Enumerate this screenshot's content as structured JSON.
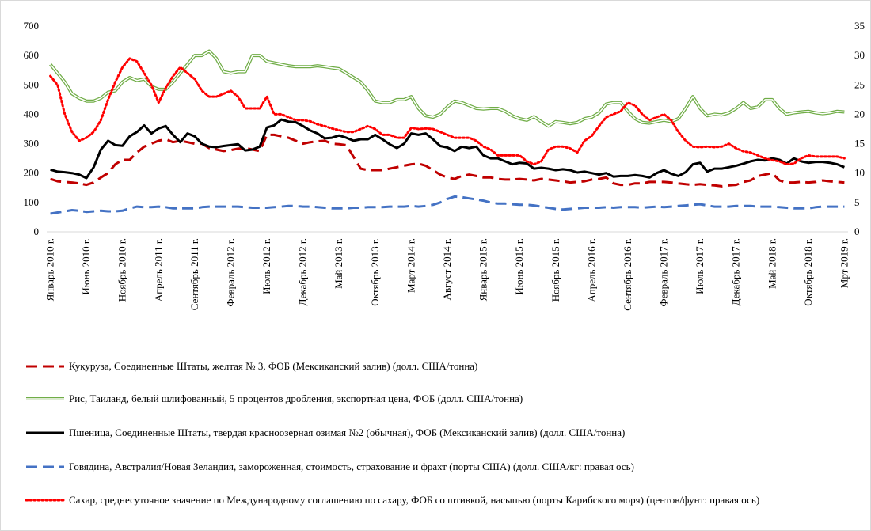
{
  "chart_data": {
    "type": "line",
    "categories": [
      "Январь 2010 г.",
      null,
      null,
      null,
      null,
      "Июнь 2010 г.",
      null,
      null,
      null,
      null,
      "Ноябрь 2010 г.",
      null,
      null,
      null,
      null,
      "Апрель 2011 г.",
      null,
      null,
      null,
      null,
      "Сентябрь 2011 г.",
      null,
      null,
      null,
      null,
      "Февраль 2012 г.",
      null,
      null,
      null,
      null,
      "Июль 2012 г.",
      null,
      null,
      null,
      null,
      "Декабрь 2012 г.",
      null,
      null,
      null,
      null,
      "Май 2013 г.",
      null,
      null,
      null,
      null,
      "Октябрь 2013 г.",
      null,
      null,
      null,
      null,
      "Март 2014 г.",
      null,
      null,
      null,
      null,
      "Август 2014 г.",
      null,
      null,
      null,
      null,
      "Январь 2015 г.",
      null,
      null,
      null,
      null,
      "Июнь 2015 г.",
      null,
      null,
      null,
      null,
      "Ноябрь 2015 г.",
      null,
      null,
      null,
      null,
      "Апрель 2016 г.",
      null,
      null,
      null,
      null,
      "Сентябрь 2016 г.",
      null,
      null,
      null,
      null,
      "Февраль 2017 г.",
      null,
      null,
      null,
      null,
      "Июль 2017 г.",
      null,
      null,
      null,
      null,
      "Декабрь 2017 г.",
      null,
      null,
      null,
      null,
      "Май 2018 г.",
      null,
      null,
      null,
      null,
      "Октябрь 2018 г.",
      null,
      null,
      null,
      null,
      "Мрт 2019 г."
    ],
    "ylim": [
      0,
      700
    ],
    "yticks": [
      0,
      100,
      200,
      300,
      400,
      500,
      600,
      700
    ],
    "y2lim": [
      0,
      35
    ],
    "y2ticks": [
      0,
      5,
      10,
      15,
      20,
      25,
      30,
      35
    ],
    "series": [
      {
        "name": "Кукуруза, Соединенные Штаты, желтая № 3, ФОБ (Мексиканский залив) (долл. США/тонна)",
        "color": "#c00000",
        "style": "dashed",
        "values": [
          180,
          172,
          170,
          168,
          165,
          160,
          168,
          185,
          200,
          230,
          245,
          245,
          270,
          290,
          300,
          310,
          315,
          305,
          310,
          305,
          300,
          300,
          285,
          280,
          275,
          278,
          283,
          285,
          280,
          275,
          330,
          330,
          325,
          320,
          310,
          300,
          305,
          308,
          310,
          300,
          298,
          295,
          255,
          215,
          210,
          210,
          210,
          215,
          220,
          225,
          230,
          232,
          225,
          210,
          195,
          185,
          180,
          190,
          195,
          190,
          185,
          185,
          180,
          178,
          178,
          180,
          178,
          175,
          180,
          178,
          175,
          172,
          168,
          170,
          172,
          178,
          180,
          185,
          165,
          160,
          160,
          165,
          165,
          170,
          170,
          170,
          168,
          165,
          162,
          160,
          162,
          160,
          158,
          155,
          158,
          160,
          170,
          175,
          190,
          195,
          200,
          175,
          168,
          168,
          170,
          168,
          170,
          175,
          172,
          170,
          168
        ]
      },
      {
        "name": "Рис, Таиланд, белый шлифованный, 5 процентов дробления, экспортная цена, ФОБ (долл. США/тонна)",
        "color": "#70ad47",
        "style": "double",
        "values": [
          570,
          540,
          510,
          470,
          455,
          445,
          445,
          455,
          475,
          480,
          510,
          525,
          515,
          520,
          495,
          485,
          485,
          510,
          540,
          570,
          600,
          600,
          615,
          590,
          545,
          540,
          545,
          545,
          600,
          600,
          580,
          575,
          570,
          565,
          562,
          562,
          562,
          565,
          562,
          558,
          555,
          540,
          525,
          510,
          480,
          445,
          440,
          440,
          450,
          450,
          460,
          420,
          395,
          390,
          400,
          425,
          445,
          440,
          430,
          420,
          418,
          420,
          420,
          410,
          395,
          385,
          380,
          392,
          375,
          360,
          375,
          372,
          368,
          372,
          385,
          390,
          405,
          435,
          440,
          440,
          410,
          385,
          372,
          370,
          375,
          380,
          375,
          385,
          420,
          460,
          420,
          395,
          400,
          398,
          405,
          420,
          440,
          420,
          425,
          450,
          450,
          420,
          400,
          405,
          408,
          410,
          405,
          402,
          405,
          410,
          408
        ]
      },
      {
        "name": "Пшеница, Соединенные Штаты, твердая красноозерная озимая №2 (обычная), ФОБ (Мексиканский залив) (долл. США/тонна)",
        "color": "#000000",
        "style": "solid",
        "values": [
          212,
          205,
          203,
          200,
          195,
          183,
          220,
          280,
          310,
          295,
          293,
          325,
          340,
          362,
          335,
          352,
          360,
          330,
          305,
          335,
          325,
          300,
          290,
          288,
          292,
          295,
          298,
          277,
          280,
          290,
          355,
          362,
          382,
          375,
          373,
          360,
          345,
          335,
          318,
          320,
          328,
          320,
          310,
          315,
          315,
          330,
          315,
          298,
          285,
          300,
          335,
          330,
          335,
          315,
          292,
          287,
          275,
          290,
          285,
          290,
          260,
          250,
          250,
          240,
          230,
          235,
          233,
          215,
          218,
          215,
          210,
          213,
          210,
          202,
          205,
          200,
          195,
          200,
          188,
          190,
          190,
          193,
          190,
          185,
          200,
          210,
          198,
          190,
          203,
          230,
          235,
          205,
          215,
          215,
          220,
          225,
          232,
          240,
          245,
          243,
          250,
          245,
          232,
          250,
          240,
          235,
          238,
          238,
          235,
          230,
          220
        ]
      },
      {
        "name": "Говядина, Австралия/Новая Зеландия, замороженная, стоимость, страхование и фрахт (порты США) (долл. США/кг: правая ось)",
        "color": "#4472c4",
        "style": "dashed",
        "axis": "y2",
        "values": [
          3.1,
          3.3,
          3.5,
          3.7,
          3.6,
          3.4,
          3.5,
          3.6,
          3.5,
          3.5,
          3.6,
          4.0,
          4.3,
          4.2,
          4.2,
          4.3,
          4.2,
          4.0,
          4.0,
          4.0,
          4.0,
          4.2,
          4.3,
          4.3,
          4.3,
          4.3,
          4.3,
          4.2,
          4.1,
          4.1,
          4.1,
          4.2,
          4.3,
          4.4,
          4.4,
          4.3,
          4.3,
          4.2,
          4.1,
          4.0,
          4.0,
          4.0,
          4.1,
          4.1,
          4.2,
          4.2,
          4.2,
          4.3,
          4.3,
          4.3,
          4.4,
          4.3,
          4.4,
          4.6,
          5.0,
          5.6,
          6.0,
          5.9,
          5.7,
          5.5,
          5.3,
          5.0,
          4.8,
          4.8,
          4.7,
          4.6,
          4.6,
          4.5,
          4.3,
          4.1,
          3.9,
          3.8,
          3.9,
          4.0,
          4.1,
          4.1,
          4.1,
          4.2,
          4.1,
          4.2,
          4.2,
          4.2,
          4.1,
          4.2,
          4.3,
          4.2,
          4.3,
          4.4,
          4.5,
          4.6,
          4.7,
          4.5,
          4.3,
          4.3,
          4.3,
          4.4,
          4.4,
          4.4,
          4.3,
          4.3,
          4.3,
          4.2,
          4.1,
          4.0,
          4.0,
          4.0,
          4.2,
          4.3,
          4.3,
          4.3,
          4.3
        ]
      },
      {
        "name": "Сахар, среднесуточное значение по Международному соглашению по сахару, ФОБ со штивкой, насыпью (порты Карибского моря) (центов/фунт: правая ось)",
        "color": "#ff0000",
        "style": "dotted",
        "axis": "y2",
        "values": [
          26.5,
          25,
          20,
          17,
          15.5,
          16,
          17,
          19,
          22.5,
          25.5,
          28,
          29.5,
          29,
          27,
          25,
          22,
          24.5,
          26.5,
          28,
          27,
          26,
          24,
          23,
          23,
          23.5,
          24,
          23,
          21,
          21,
          21,
          23,
          20,
          20,
          19.5,
          19,
          19,
          18.8,
          18.3,
          18,
          17.6,
          17.3,
          17,
          17,
          17.5,
          18,
          17.5,
          16.5,
          16.5,
          16,
          16,
          17.7,
          17.5,
          17.6,
          17.5,
          17,
          16.5,
          16,
          16,
          16,
          15.5,
          14.5,
          14,
          13,
          13,
          13,
          13,
          12,
          11.5,
          12,
          14,
          14.5,
          14.5,
          14.2,
          13.5,
          15.5,
          16.3,
          18,
          19.5,
          20,
          20.5,
          22,
          21.5,
          20,
          19,
          19.5,
          20,
          19,
          17,
          15.5,
          14.5,
          14.4,
          14.5,
          14.4,
          14.5,
          15,
          14.2,
          13.7,
          13.5,
          13,
          12.5,
          12.2,
          12,
          11.5,
          11.6,
          12.5,
          13,
          12.8,
          12.8,
          12.8,
          12.8,
          12.5
        ]
      }
    ]
  }
}
